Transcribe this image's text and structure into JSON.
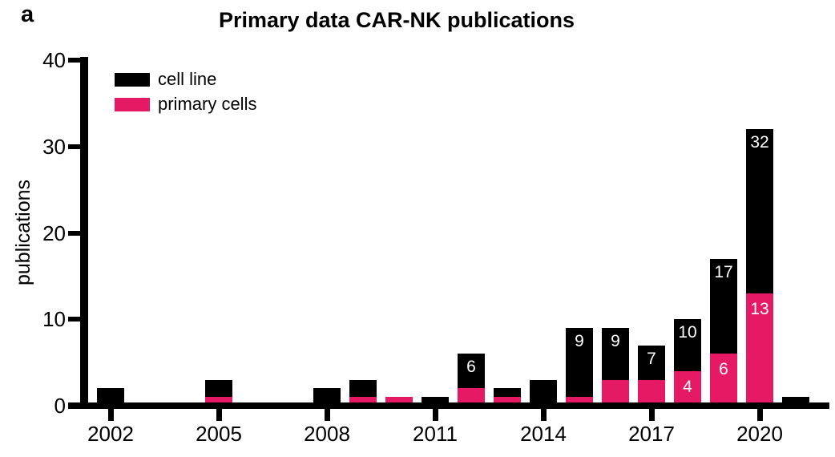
{
  "panel_label": "a",
  "legend": {
    "items": [
      {
        "label": "cell line",
        "color": "#000000"
      },
      {
        "label": "primary cells",
        "color": "#E61964"
      }
    ]
  },
  "chart_data": {
    "type": "bar",
    "stacked": true,
    "title": "Primary data CAR-NK publications",
    "xlabel": "",
    "ylabel": "publications",
    "ylim": [
      0,
      40
    ],
    "yticks": [
      0,
      10,
      20,
      30,
      40
    ],
    "xticks": [
      2002,
      2005,
      2008,
      2011,
      2014,
      2017,
      2020
    ],
    "grid": false,
    "legend_position": "top-left-inside",
    "series": [
      {
        "name": "cell line",
        "color": "#000000"
      },
      {
        "name": "primary cells",
        "color": "#E61964"
      }
    ],
    "bars": [
      {
        "year": 2002,
        "primary_cells": 0,
        "cell_line": 2,
        "total": 2,
        "total_label": "",
        "primary_label": ""
      },
      {
        "year": 2005,
        "primary_cells": 1,
        "cell_line": 2,
        "total": 3,
        "total_label": "",
        "primary_label": ""
      },
      {
        "year": 2008,
        "primary_cells": 0,
        "cell_line": 2,
        "total": 2,
        "total_label": "",
        "primary_label": ""
      },
      {
        "year": 2009,
        "primary_cells": 1,
        "cell_line": 2,
        "total": 3,
        "total_label": "",
        "primary_label": ""
      },
      {
        "year": 2010,
        "primary_cells": 1,
        "cell_line": 0,
        "total": 1,
        "total_label": "",
        "primary_label": ""
      },
      {
        "year": 2011,
        "primary_cells": 0,
        "cell_line": 1,
        "total": 1,
        "total_label": "",
        "primary_label": ""
      },
      {
        "year": 2012,
        "primary_cells": 2,
        "cell_line": 4,
        "total": 6,
        "total_label": "6",
        "primary_label": ""
      },
      {
        "year": 2013,
        "primary_cells": 1,
        "cell_line": 1,
        "total": 2,
        "total_label": "",
        "primary_label": ""
      },
      {
        "year": 2014,
        "primary_cells": 0,
        "cell_line": 3,
        "total": 3,
        "total_label": "",
        "primary_label": ""
      },
      {
        "year": 2015,
        "primary_cells": 1,
        "cell_line": 8,
        "total": 9,
        "total_label": "9",
        "primary_label": ""
      },
      {
        "year": 2016,
        "primary_cells": 3,
        "cell_line": 6,
        "total": 9,
        "total_label": "9",
        "primary_label": ""
      },
      {
        "year": 2017,
        "primary_cells": 3,
        "cell_line": 4,
        "total": 7,
        "total_label": "7",
        "primary_label": ""
      },
      {
        "year": 2018,
        "primary_cells": 4,
        "cell_line": 6,
        "total": 10,
        "total_label": "10",
        "primary_label": "4"
      },
      {
        "year": 2019,
        "primary_cells": 6,
        "cell_line": 11,
        "total": 17,
        "total_label": "17",
        "primary_label": "6"
      },
      {
        "year": 2020,
        "primary_cells": 13,
        "cell_line": 19,
        "total": 32,
        "total_label": "32",
        "primary_label": "13"
      },
      {
        "year": 2021,
        "primary_cells": 0,
        "cell_line": 1,
        "total": 1,
        "total_label": "",
        "primary_label": ""
      }
    ]
  }
}
